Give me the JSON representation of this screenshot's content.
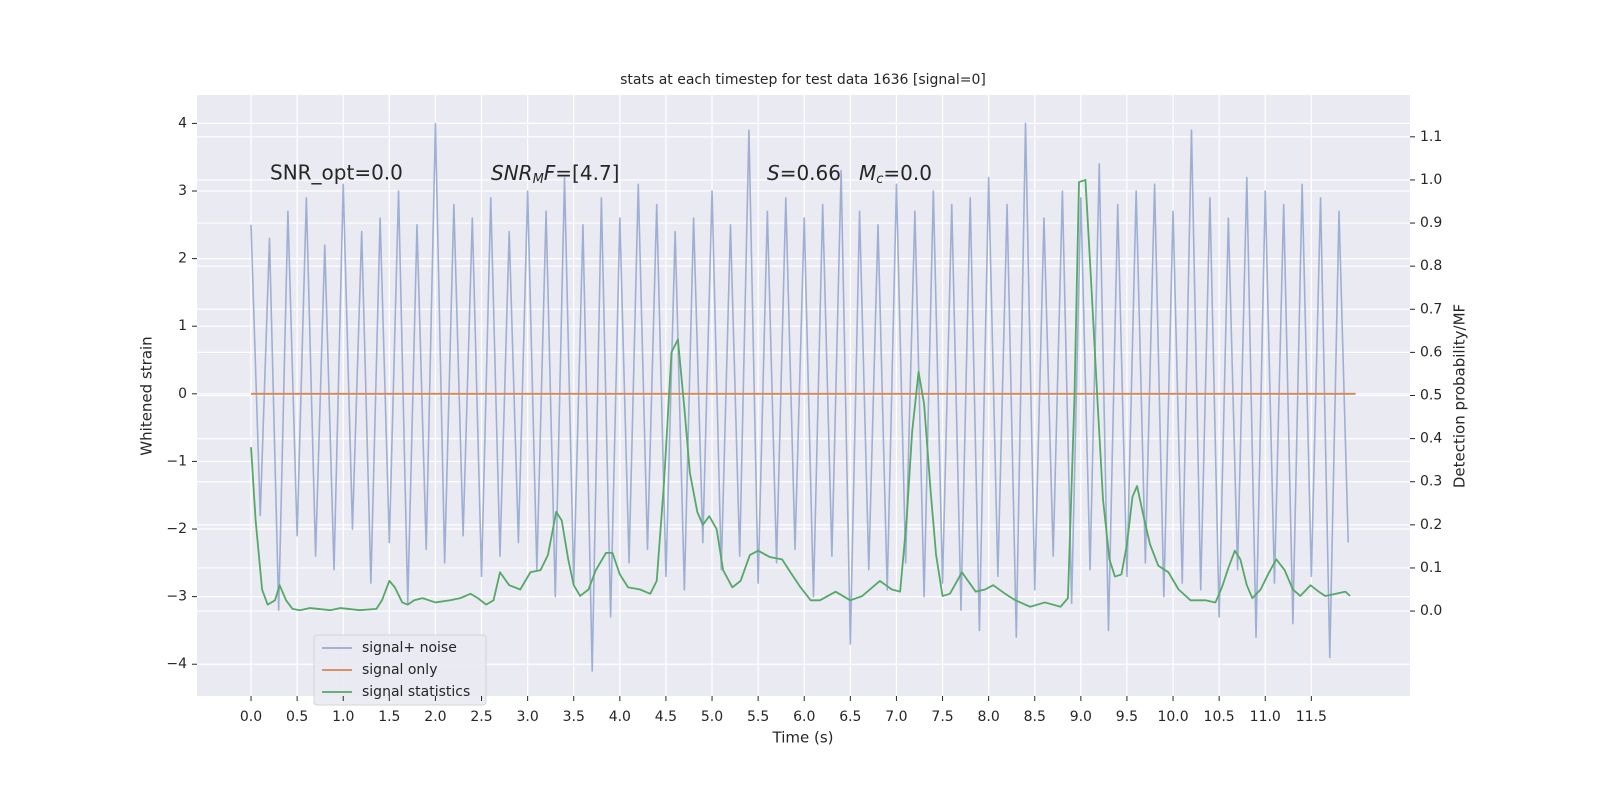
{
  "chart_data": {
    "type": "line",
    "title": "stats at each timestep for test data 1636 [signal=0]",
    "xlabel": "Time (s)",
    "ylabel": "Whitened strain",
    "y2label": "Detection probability/MF",
    "annotations": [
      "SNR_opt=0.0",
      [
        "SNR",
        "M",
        "F",
        "=[4.7]"
      ],
      [
        "S",
        "=0.66"
      ],
      [
        "M",
        "c",
        "=0.0"
      ]
    ],
    "grid": true,
    "xlim": [
      -0.586,
      12.57
    ],
    "ylim": [
      -4.47,
      4.42
    ],
    "y2lim": [
      -0.197,
      1.197
    ],
    "xticks": [
      {
        "value": 0,
        "label": "0.0"
      },
      {
        "value": 0.5,
        "label": "0.5"
      },
      {
        "value": 1,
        "label": "1.0"
      },
      {
        "value": 1.5,
        "label": "1.5"
      },
      {
        "value": 2,
        "label": "2.0"
      },
      {
        "value": 2.5,
        "label": "2.5"
      },
      {
        "value": 3,
        "label": "3.0"
      },
      {
        "value": 3.5,
        "label": "3.5"
      },
      {
        "value": 4,
        "label": "4.0"
      },
      {
        "value": 4.5,
        "label": "4.5"
      },
      {
        "value": 5,
        "label": "5.0"
      },
      {
        "value": 5.5,
        "label": "5.5"
      },
      {
        "value": 6,
        "label": "6.0"
      },
      {
        "value": 6.5,
        "label": "6.5"
      },
      {
        "value": 7,
        "label": "7.0"
      },
      {
        "value": 7.5,
        "label": "7.5"
      },
      {
        "value": 8,
        "label": "8.0"
      },
      {
        "value": 8.5,
        "label": "8.5"
      },
      {
        "value": 9,
        "label": "9.0"
      },
      {
        "value": 9.5,
        "label": "9.5"
      },
      {
        "value": 10,
        "label": "10.0"
      },
      {
        "value": 10.5,
        "label": "10.5"
      },
      {
        "value": 11,
        "label": "11.0"
      },
      {
        "value": 11.5,
        "label": "11.5"
      }
    ],
    "yticks": [
      4,
      3,
      2,
      1,
      0,
      {
        "value": -1,
        "label": "−1"
      },
      {
        "value": -2,
        "label": "−2"
      },
      {
        "value": -3,
        "label": "−3"
      },
      {
        "value": -4,
        "label": "−4"
      }
    ],
    "y2ticks": [
      {
        "value": 0,
        "label": "0.0"
      },
      {
        "value": 0.1,
        "label": "0.1"
      },
      {
        "value": 0.2,
        "label": "0.2"
      },
      {
        "value": 0.3,
        "label": "0.3"
      },
      {
        "value": 0.4,
        "label": "0.4"
      },
      {
        "value": 0.5,
        "label": "0.5"
      },
      {
        "value": 0.6,
        "label": "0.6"
      },
      {
        "value": 0.7,
        "label": "0.7"
      },
      {
        "value": 0.8,
        "label": "0.8"
      },
      {
        "value": 0.9,
        "label": "0.9"
      },
      {
        "value": 1,
        "label": "1.0"
      },
      {
        "value": 1.1,
        "label": "1.1"
      }
    ],
    "series": [
      {
        "name": "signal+ noise",
        "color": "#97a9cf",
        "x": [
          0.0,
          0.1,
          0.2,
          0.3,
          0.4,
          0.5,
          0.6,
          0.7,
          0.8,
          0.9,
          1.0,
          1.1,
          1.2,
          1.3,
          1.4,
          1.5,
          1.6,
          1.7,
          1.8,
          1.9,
          2.0,
          2.1,
          2.2,
          2.3,
          2.4,
          2.5,
          2.6,
          2.7,
          2.8,
          2.9,
          3.0,
          3.1,
          3.2,
          3.3,
          3.4,
          3.5,
          3.6,
          3.7,
          3.8,
          3.9,
          4.0,
          4.1,
          4.2,
          4.3,
          4.4,
          4.5,
          4.6,
          4.7,
          4.8,
          4.9,
          5.0,
          5.1,
          5.2,
          5.3,
          5.4,
          5.5,
          5.6,
          5.7,
          5.8,
          5.9,
          6.0,
          6.1,
          6.2,
          6.3,
          6.4,
          6.5,
          6.6,
          6.7,
          6.8,
          6.9,
          7.0,
          7.1,
          7.2,
          7.3,
          7.4,
          7.5,
          7.6,
          7.7,
          7.8,
          7.9,
          8.0,
          8.1,
          8.2,
          8.3,
          8.4,
          8.5,
          8.6,
          8.7,
          8.8,
          8.9,
          9.0,
          9.1,
          9.2,
          9.3,
          9.4,
          9.5,
          9.6,
          9.7,
          9.8,
          9.9,
          10.0,
          10.1,
          10.2,
          10.3,
          10.4,
          10.5,
          10.6,
          10.7,
          10.8,
          10.9,
          11.0,
          11.1,
          11.2,
          11.3,
          11.4,
          11.5,
          11.6,
          11.7,
          11.8,
          11.9
        ],
        "values": [
          2.5,
          -1.8,
          2.3,
          -3.2,
          2.7,
          -2.1,
          2.9,
          -2.4,
          2.2,
          -2.6,
          3.1,
          -2.0,
          2.4,
          -2.8,
          2.6,
          -2.2,
          3.0,
          -3.1,
          2.5,
          -2.3,
          4.0,
          -2.5,
          2.8,
          -2.1,
          2.6,
          -2.7,
          2.9,
          -2.4,
          2.4,
          -2.2,
          3.0,
          -2.6,
          2.7,
          -3.0,
          3.2,
          -2.8,
          2.5,
          -4.1,
          2.9,
          -3.3,
          2.6,
          -2.5,
          3.1,
          -2.3,
          2.8,
          -2.7,
          2.4,
          -2.9,
          2.6,
          -2.2,
          3.0,
          -2.6,
          2.5,
          -2.4,
          3.9,
          -2.8,
          2.7,
          -2.5,
          2.9,
          -2.3,
          2.6,
          -3.0,
          2.8,
          -2.4,
          3.3,
          -3.7,
          2.7,
          -2.6,
          2.5,
          -2.9,
          3.1,
          -2.5,
          2.7,
          -3.0,
          3.0,
          -2.8,
          2.8,
          -3.2,
          2.9,
          -3.5,
          3.2,
          -2.7,
          2.8,
          -3.6,
          4.0,
          -2.9,
          2.6,
          -2.4,
          3.0,
          -3.1,
          2.9,
          -2.6,
          3.4,
          -3.5,
          2.8,
          -2.7,
          3.0,
          -2.5,
          3.1,
          -3.0,
          2.7,
          -2.8,
          3.9,
          -2.9,
          2.9,
          -3.3,
          2.6,
          -2.6,
          3.2,
          -3.6,
          3.0,
          -2.8,
          2.8,
          -3.4,
          3.1,
          -2.7,
          2.9,
          -3.9,
          2.7,
          -2.2
        ]
      },
      {
        "name": "signal only",
        "color": "#dd8452",
        "x": [
          0.0,
          11.98
        ],
        "values": [
          0,
          0
        ]
      },
      {
        "name": "signal statistics",
        "color": "#55a868",
        "axis": "y2",
        "x": [
          0,
          0.05,
          0.12,
          0.18,
          0.26,
          0.31,
          0.38,
          0.45,
          0.53,
          0.64,
          0.86,
          0.97,
          1.18,
          1.36,
          1.42,
          1.5,
          1.56,
          1.64,
          1.7,
          1.77,
          1.86,
          2.0,
          2.16,
          2.27,
          2.38,
          2.46,
          2.55,
          2.63,
          2.7,
          2.8,
          2.92,
          3.03,
          3.14,
          3.22,
          3.31,
          3.37,
          3.44,
          3.5,
          3.57,
          3.66,
          3.74,
          3.85,
          3.92,
          4.0,
          4.09,
          4.22,
          4.33,
          4.4,
          4.48,
          4.56,
          4.63,
          4.7,
          4.76,
          4.84,
          4.9,
          4.97,
          5.05,
          5.12,
          5.22,
          5.31,
          5.41,
          5.5,
          5.63,
          5.76,
          5.85,
          5.96,
          6.07,
          6.17,
          6.34,
          6.5,
          6.63,
          6.82,
          6.95,
          7.04,
          7.11,
          7.17,
          7.24,
          7.3,
          7.37,
          7.43,
          7.5,
          7.58,
          7.71,
          7.86,
          7.96,
          8.05,
          8.18,
          8.29,
          8.45,
          8.61,
          8.78,
          8.86,
          8.93,
          8.98,
          9.05,
          9.11,
          9.18,
          9.24,
          9.31,
          9.37,
          9.44,
          9.5,
          9.56,
          9.61,
          9.68,
          9.75,
          9.84,
          9.95,
          10.06,
          10.19,
          10.35,
          10.46,
          10.53,
          10.6,
          10.67,
          10.73,
          10.8,
          10.86,
          10.95,
          11.03,
          11.12,
          11.21,
          11.3,
          11.38,
          11.49,
          11.58,
          11.65,
          11.76,
          11.87,
          11.92
        ],
        "values": [
          0.38,
          0.21,
          0.05,
          0.015,
          0.025,
          0.06,
          0.025,
          0.005,
          0.002,
          0.007,
          0.002,
          0.007,
          0.002,
          0.005,
          0.025,
          0.07,
          0.055,
          0.02,
          0.015,
          0.025,
          0.03,
          0.02,
          0.025,
          0.03,
          0.04,
          0.03,
          0.015,
          0.025,
          0.09,
          0.06,
          0.05,
          0.09,
          0.095,
          0.13,
          0.23,
          0.21,
          0.12,
          0.06,
          0.035,
          0.05,
          0.095,
          0.135,
          0.135,
          0.085,
          0.055,
          0.05,
          0.04,
          0.07,
          0.3,
          0.6,
          0.63,
          0.47,
          0.32,
          0.23,
          0.2,
          0.22,
          0.19,
          0.095,
          0.055,
          0.07,
          0.13,
          0.14,
          0.125,
          0.12,
          0.09,
          0.055,
          0.025,
          0.025,
          0.045,
          0.025,
          0.035,
          0.07,
          0.05,
          0.045,
          0.21,
          0.415,
          0.555,
          0.48,
          0.28,
          0.13,
          0.035,
          0.04,
          0.09,
          0.045,
          0.05,
          0.06,
          0.04,
          0.025,
          0.01,
          0.02,
          0.01,
          0.03,
          0.49,
          0.995,
          1.0,
          0.77,
          0.49,
          0.26,
          0.12,
          0.08,
          0.085,
          0.155,
          0.265,
          0.29,
          0.22,
          0.155,
          0.105,
          0.09,
          0.05,
          0.025,
          0.025,
          0.02,
          0.055,
          0.1,
          0.14,
          0.12,
          0.06,
          0.03,
          0.05,
          0.085,
          0.12,
          0.095,
          0.05,
          0.035,
          0.06,
          0.045,
          0.035,
          0.04,
          0.045,
          0.035
        ]
      }
    ]
  }
}
